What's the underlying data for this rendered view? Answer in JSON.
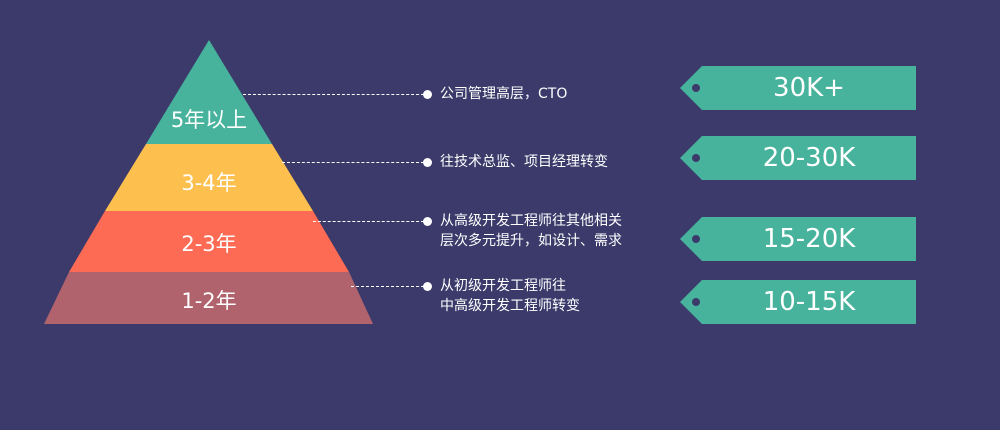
{
  "colors": {
    "background": "#3b3a6b",
    "tier_top": "#48b39c",
    "tier_second": "#fdc04f",
    "tier_third": "#fe6b55",
    "tier_bottom": "#b1636d",
    "tag": "#48b39c"
  },
  "pyramid": {
    "tiers": [
      {
        "label": "5年以上"
      },
      {
        "label": "3-4年"
      },
      {
        "label": "2-3年"
      },
      {
        "label": "1-2年"
      }
    ]
  },
  "descriptions": [
    {
      "lines": [
        "公司管理高层，CTO"
      ]
    },
    {
      "lines": [
        "往技术总监、项目经理转变"
      ]
    },
    {
      "lines": [
        "从高级开发工程师往其他相关",
        "层次多元提升，如设计、需求"
      ]
    },
    {
      "lines": [
        "从初级开发工程师往",
        "中高级开发工程师转变"
      ]
    }
  ],
  "salary_tags": [
    {
      "label": "30K+",
      "icon": "tag-icon"
    },
    {
      "label": "20-30K",
      "icon": "tag-icon"
    },
    {
      "label": "15-20K",
      "icon": "tag-icon"
    },
    {
      "label": "10-15K",
      "icon": "tag-icon"
    }
  ]
}
